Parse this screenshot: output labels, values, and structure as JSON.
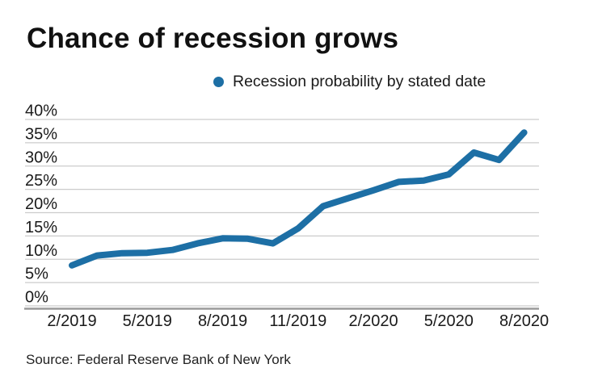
{
  "title": "Chance of recession grows",
  "legend": {
    "label": "Recession probability by stated date",
    "dot_color": "#1d6fa5"
  },
  "source": "Source: Federal Reserve Bank of New York",
  "colors": {
    "line": "#1d6fa5",
    "grid": "#cccccc",
    "axis": "#9a9a9a",
    "text": "#1a1a1a"
  },
  "chart_data": {
    "type": "line",
    "title": "Chance of recession grows",
    "series_name": "Recession probability by stated date",
    "x": [
      "2/2019",
      "3/2019",
      "4/2019",
      "5/2019",
      "6/2019",
      "7/2019",
      "8/2019",
      "9/2019",
      "10/2019",
      "11/2019",
      "12/2019",
      "1/2020",
      "2/2020",
      "3/2020",
      "4/2020",
      "5/2020",
      "6/2020",
      "7/2020",
      "8/2020"
    ],
    "values": [
      8.7,
      10.8,
      11.3,
      11.4,
      12.0,
      13.4,
      14.5,
      14.4,
      13.4,
      16.6,
      21.4,
      23.1,
      24.8,
      26.6,
      26.9,
      28.2,
      32.9,
      31.3,
      37.2
    ],
    "unit": "%",
    "x_tick_labels": [
      "2/2019",
      "5/2019",
      "8/2019",
      "11/2019",
      "2/2020",
      "5/2020",
      "8/2020"
    ],
    "x_tick_month_indices": [
      0,
      3,
      6,
      9,
      12,
      15,
      18
    ],
    "y_ticks": [
      0,
      5,
      10,
      15,
      20,
      25,
      30,
      35,
      40
    ],
    "y_tick_suffix": "%",
    "ylim": [
      0,
      40
    ],
    "grid": "horizontal",
    "legend_position": "top-right",
    "source": "Source: Federal Reserve Bank of New York"
  }
}
